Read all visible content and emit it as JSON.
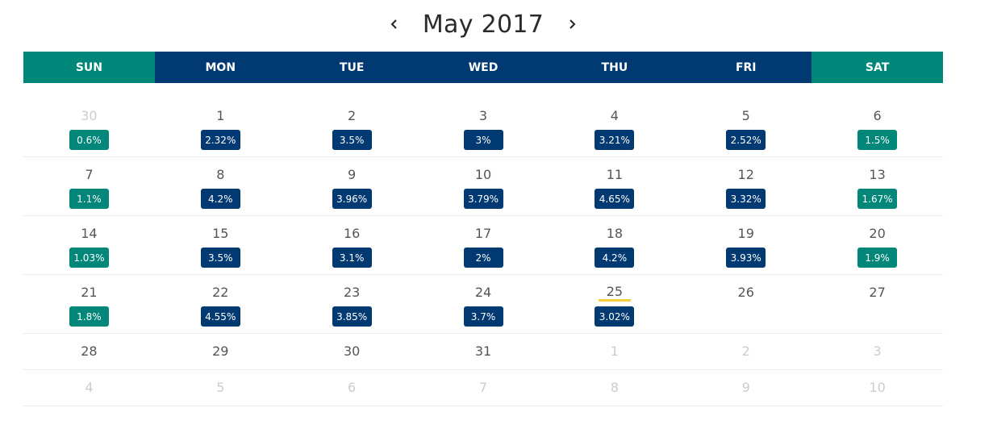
{
  "header": {
    "title": "May 2017",
    "prev_icon": "chevron-left-icon",
    "next_icon": "chevron-right-icon"
  },
  "weekdays": [
    "SUN",
    "MON",
    "TUE",
    "WED",
    "THU",
    "FRI",
    "SAT"
  ],
  "colors": {
    "weekday_bg": "#013a72",
    "weekend_bg": "#00877a",
    "today_underline": "#f4d03f"
  },
  "weeks": [
    [
      {
        "day": "30",
        "other": true,
        "value": "0.6%"
      },
      {
        "day": "1",
        "value": "2.32%"
      },
      {
        "day": "2",
        "value": "3.5%"
      },
      {
        "day": "3",
        "value": "3%"
      },
      {
        "day": "4",
        "value": "3.21%"
      },
      {
        "day": "5",
        "value": "2.52%"
      },
      {
        "day": "6",
        "value": "1.5%"
      }
    ],
    [
      {
        "day": "7",
        "value": "1.1%"
      },
      {
        "day": "8",
        "value": "4.2%"
      },
      {
        "day": "9",
        "value": "3.96%"
      },
      {
        "day": "10",
        "value": "3.79%"
      },
      {
        "day": "11",
        "value": "4.65%"
      },
      {
        "day": "12",
        "value": "3.32%"
      },
      {
        "day": "13",
        "value": "1.67%"
      }
    ],
    [
      {
        "day": "14",
        "value": "1.03%"
      },
      {
        "day": "15",
        "value": "3.5%"
      },
      {
        "day": "16",
        "value": "3.1%"
      },
      {
        "day": "17",
        "value": "2%"
      },
      {
        "day": "18",
        "value": "4.2%"
      },
      {
        "day": "19",
        "value": "3.93%"
      },
      {
        "day": "20",
        "value": "1.9%"
      }
    ],
    [
      {
        "day": "21",
        "value": "1.8%"
      },
      {
        "day": "22",
        "value": "4.55%"
      },
      {
        "day": "23",
        "value": "3.85%"
      },
      {
        "day": "24",
        "value": "3.7%"
      },
      {
        "day": "25",
        "value": "3.02%",
        "today": true
      },
      {
        "day": "26"
      },
      {
        "day": "27"
      }
    ],
    [
      {
        "day": "28"
      },
      {
        "day": "29"
      },
      {
        "day": "30"
      },
      {
        "day": "31"
      },
      {
        "day": "1",
        "other": true
      },
      {
        "day": "2",
        "other": true
      },
      {
        "day": "3",
        "other": true
      }
    ],
    [
      {
        "day": "4",
        "other": true
      },
      {
        "day": "5",
        "other": true
      },
      {
        "day": "6",
        "other": true
      },
      {
        "day": "7",
        "other": true
      },
      {
        "day": "8",
        "other": true
      },
      {
        "day": "9",
        "other": true
      },
      {
        "day": "10",
        "other": true
      }
    ]
  ]
}
